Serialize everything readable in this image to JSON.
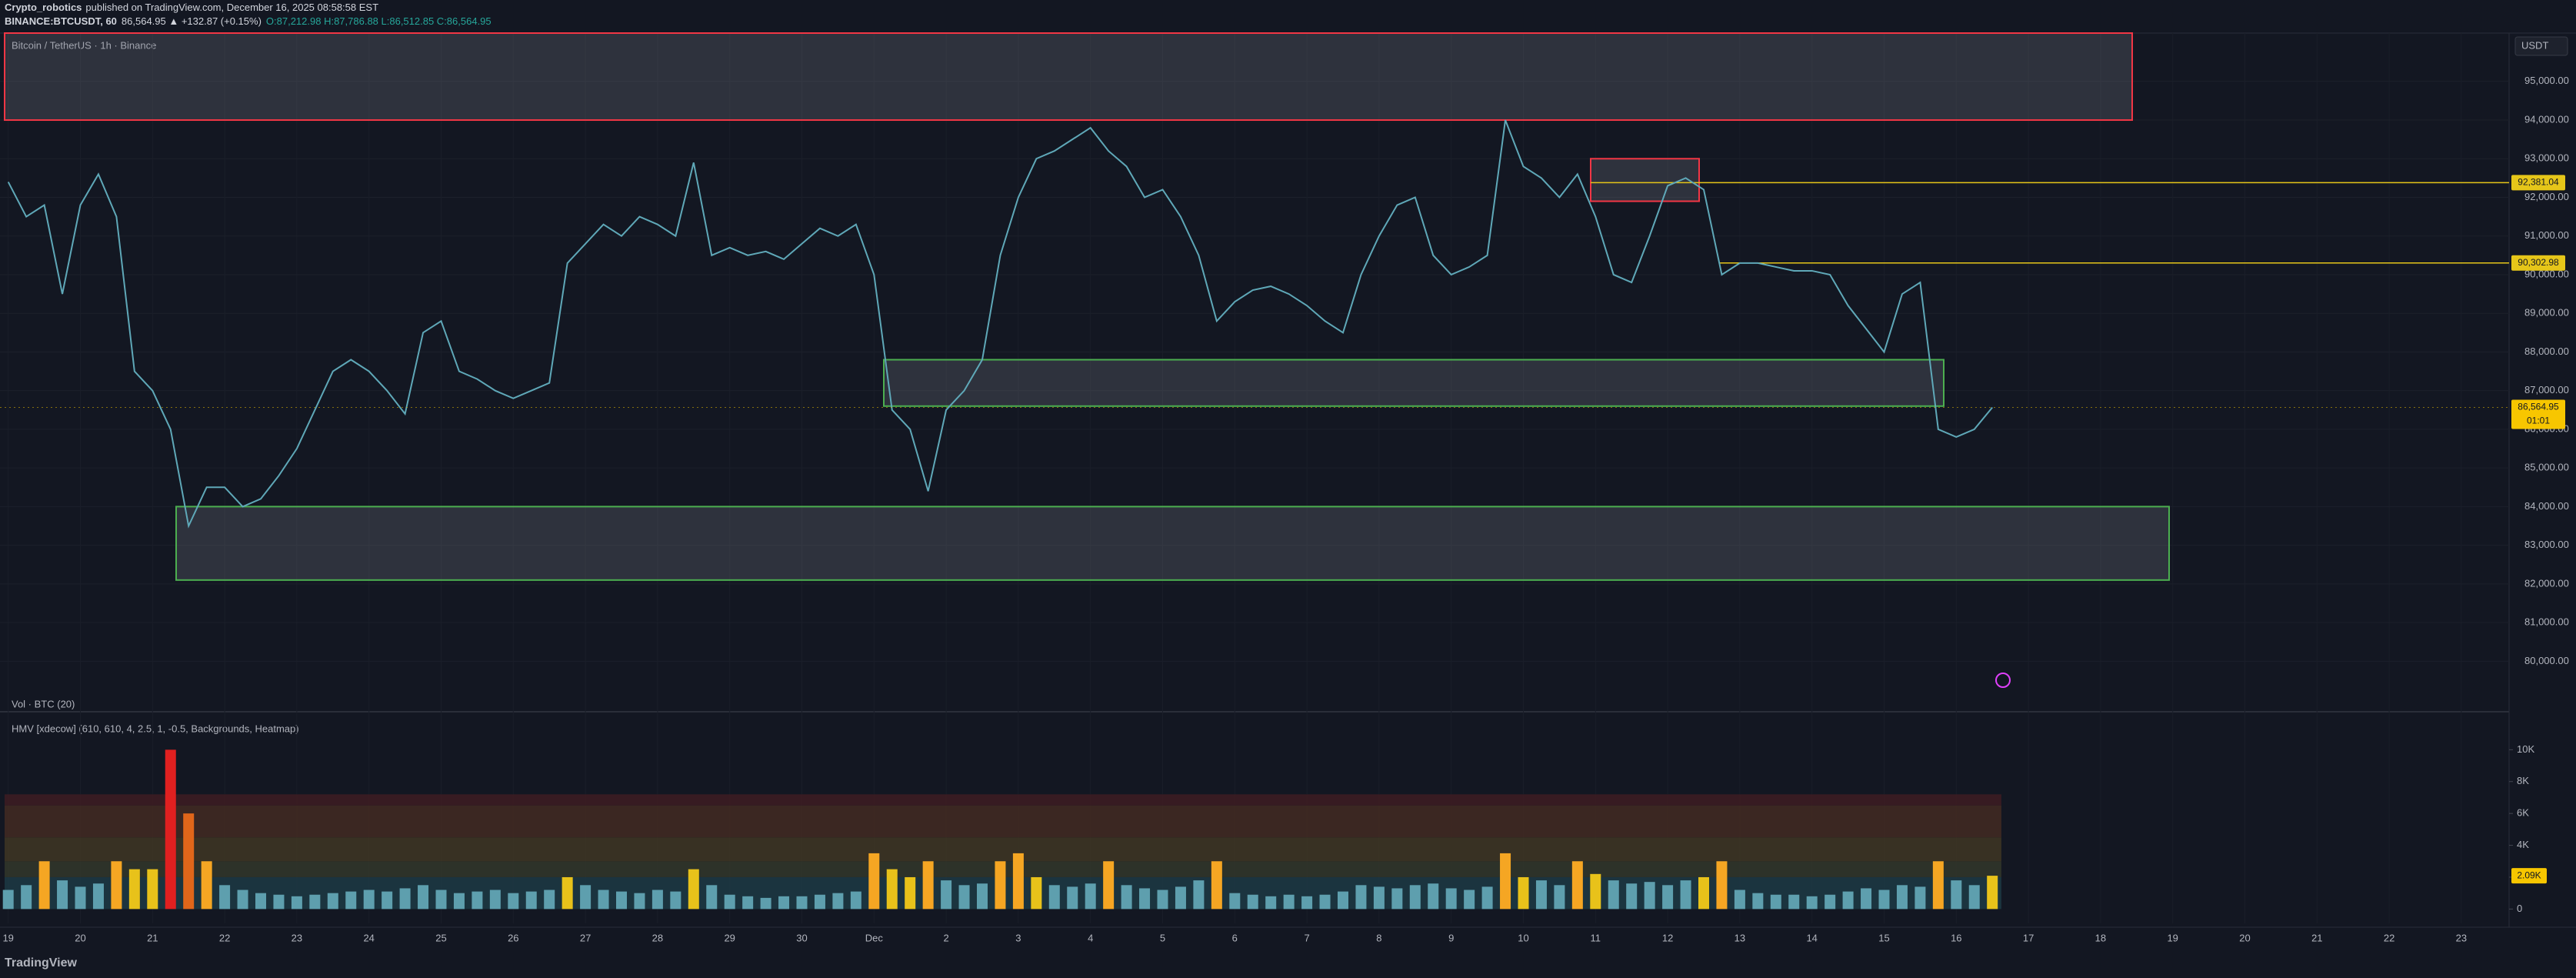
{
  "header": {
    "publisher": "Crypto_robotics",
    "published": "published on TradingView.com, December 16, 2025 08:58:58 EST",
    "symbol": "BINANCE:BTCUSDT, 60",
    "change": "86,564.95 ▲ +132.87 (+0.15%)",
    "ohlc": "O:87,212.98 H:87,786.88 L:86,512.85 C:86,564.95"
  },
  "footer": {
    "brand": "TradingView"
  },
  "chart_data": [
    {
      "type": "line",
      "title": "Bitcoin / TetherUS · 1h · Binance",
      "unit_label": "USDT",
      "color": "#5fa8b8",
      "categories": [
        "19",
        null,
        null,
        null,
        "20",
        null,
        null,
        null,
        "21",
        null,
        null,
        null,
        "22",
        null,
        null,
        null,
        "23",
        null,
        null,
        null,
        "24",
        null,
        null,
        null,
        "25",
        null,
        null,
        null,
        "26",
        null,
        null,
        null,
        "27",
        null,
        null,
        null,
        "28",
        null,
        null,
        null,
        "29",
        null,
        null,
        null,
        "30",
        null,
        null,
        null,
        "Dec",
        null,
        null,
        null,
        "2",
        null,
        null,
        null,
        "3",
        null,
        null,
        null,
        "4",
        null,
        null,
        null,
        "5",
        null,
        null,
        null,
        "6",
        null,
        null,
        null,
        "7",
        null,
        null,
        null,
        "8",
        null,
        null,
        null,
        "9",
        null,
        null,
        null,
        "10",
        null,
        null,
        null,
        "11",
        null,
        null,
        null,
        "12",
        null,
        null,
        null,
        "13",
        null,
        null,
        null,
        "14",
        null,
        null,
        null,
        "15",
        null,
        null,
        null,
        "16",
        null,
        null,
        null,
        "17",
        null,
        null,
        null,
        "18",
        null,
        null,
        null,
        "19",
        null,
        null,
        null,
        "20",
        null,
        null,
        null,
        "21",
        null,
        null,
        null,
        "22",
        null,
        null,
        null,
        "23",
        null,
        null,
        null
      ],
      "values": [
        92400,
        91500,
        91800,
        89500,
        91800,
        92600,
        91500,
        87500,
        87000,
        86000,
        83500,
        84500,
        84500,
        84000,
        84200,
        84800,
        85500,
        86500,
        87500,
        87800,
        87500,
        87000,
        86400,
        88500,
        88800,
        87500,
        87300,
        87000,
        86800,
        87000,
        87200,
        90300,
        90800,
        91300,
        91000,
        91500,
        91300,
        91000,
        92900,
        90500,
        90700,
        90500,
        90600,
        90400,
        90800,
        91200,
        91000,
        91300,
        90000,
        86500,
        86000,
        84400,
        86500,
        87000,
        87800,
        90500,
        92000,
        93000,
        93200,
        93500,
        93800,
        93200,
        92800,
        92000,
        92200,
        91500,
        90500,
        88800,
        89300,
        89600,
        89700,
        89500,
        89200,
        88800,
        88500,
        90000,
        91000,
        91800,
        92000,
        90500,
        90000,
        90200,
        90500,
        94000,
        92800,
        92500,
        92000,
        92600,
        91500,
        90000,
        89800,
        91000,
        92300,
        92500,
        92200,
        90000,
        90300,
        90300,
        90200,
        90100,
        90100,
        90000,
        89200,
        88600,
        88000,
        89500,
        89800,
        86000,
        85800,
        86000,
        86564.95,
        null,
        null,
        null,
        null,
        null,
        null,
        null,
        null,
        null,
        null,
        null,
        null,
        null,
        null,
        null,
        null,
        null,
        null,
        null,
        null,
        null,
        null,
        null,
        null,
        null,
        null,
        null,
        null,
        null
      ],
      "ylim": [
        79250,
        96250
      ],
      "yticks": [
        {
          "value": 80000,
          "label": "80,000.00"
        },
        {
          "value": 81000,
          "label": "81,000.00"
        },
        {
          "value": 82000,
          "label": "82,000.00"
        },
        {
          "value": 83000,
          "label": "83,000.00"
        },
        {
          "value": 84000,
          "label": "84,000.00"
        },
        {
          "value": 85000,
          "label": "85,000.00"
        },
        {
          "value": 86000,
          "label": "86,000.00"
        },
        {
          "value": 87000,
          "label": "87,000.00"
        },
        {
          "value": 88000,
          "label": "88,000.00"
        },
        {
          "value": 89000,
          "label": "89,000.00"
        },
        {
          "value": 90000,
          "label": "90,000.00"
        },
        {
          "value": 91000,
          "label": "91,000.00"
        },
        {
          "value": 92000,
          "label": "92,000.00"
        },
        {
          "value": 93000,
          "label": "93,000.00"
        },
        {
          "value": 94000,
          "label": "94,000.00"
        },
        {
          "value": 95000,
          "label": "95,000.00"
        }
      ],
      "levels": [
        {
          "value": 92381.04,
          "label": "92,381.04",
          "color": "#e6c619"
        },
        {
          "value": 90302.98,
          "label": "90,302.98",
          "color": "#e6c619"
        }
      ],
      "last": {
        "value": 86564.95,
        "label": "86,564.95",
        "countdown": "01:01",
        "color": "#f7c600"
      },
      "zones": [
        {
          "low": 94000,
          "high": 96250,
          "color": "#f23645"
        },
        {
          "low": 82100,
          "high": 84000,
          "color": "#4caf50"
        },
        {
          "low": 86600,
          "high": 87800,
          "color": "#4caf50"
        },
        {
          "low": 91900,
          "high": 93000,
          "color": "#f23645"
        }
      ]
    },
    {
      "type": "bar",
      "title": "Vol · BTC (20)",
      "indicator": "HMV [xdecow] (610, 610, 4, 2.5, 1, -0.5, Backgrounds, Heatmap)",
      "values": [
        1200,
        1500,
        3000,
        1800,
        1400,
        1600,
        3000,
        2500,
        2500,
        10000,
        6000,
        3000,
        1500,
        1200,
        1000,
        900,
        800,
        900,
        1000,
        1100,
        1200,
        1100,
        1300,
        1500,
        1200,
        1000,
        1100,
        1200,
        1000,
        1100,
        1200,
        2000,
        1500,
        1200,
        1100,
        1000,
        1200,
        1100,
        2500,
        1500,
        900,
        800,
        700,
        800,
        800,
        900,
        1000,
        1100,
        3500,
        2500,
        2000,
        3000,
        1800,
        1500,
        1600,
        3000,
        3500,
        2000,
        1500,
        1400,
        1600,
        3000,
        1500,
        1300,
        1200,
        1400,
        1800,
        3000,
        1000,
        900,
        800,
        900,
        800,
        900,
        1100,
        1500,
        1400,
        1300,
        1500,
        1600,
        1300,
        1200,
        1400,
        3500,
        2000,
        1800,
        1500,
        3000,
        2200,
        1800,
        1600,
        1700,
        1500,
        1800,
        2000,
        3000,
        1200,
        1000,
        900,
        900,
        800,
        900,
        1100,
        1300,
        1200,
        1500,
        1400,
        3000,
        1800,
        1500,
        2090,
        null,
        null,
        null,
        null,
        null,
        null,
        null,
        null,
        null,
        null,
        null,
        null,
        null,
        null,
        null,
        null,
        null,
        null,
        null,
        null,
        null,
        null,
        null,
        null,
        null,
        null,
        null,
        null,
        null
      ],
      "ylim": [
        -900,
        11900
      ],
      "yticks": [
        0,
        {
          "value": 2000,
          "label": "2K"
        },
        {
          "value": 4000,
          "label": "4K"
        },
        {
          "value": 6000,
          "label": "6K"
        },
        {
          "value": 8000,
          "label": "8K"
        },
        {
          "value": 10000,
          "label": "10K"
        }
      ],
      "last": {
        "value": 2090,
        "label": "2.09K",
        "color": "#f7c600"
      },
      "heatmap": [
        {
          "low": 0,
          "high": 2000,
          "bar": "#5e9fae",
          "fill": "#1d3a44"
        },
        {
          "low": 2000,
          "high": 3000,
          "bar": "#e8c21a",
          "fill": "#33372a"
        },
        {
          "low": 3000,
          "high": 4500,
          "bar": "#f5a623",
          "fill": "#3f3623"
        },
        {
          "low": 4500,
          "high": 6500,
          "bar": "#e0661a",
          "fill": "#432a22"
        },
        {
          "low": 6500,
          "high": 7200,
          "bar": "#e02020",
          "fill": "#3e1c22"
        }
      ]
    }
  ]
}
